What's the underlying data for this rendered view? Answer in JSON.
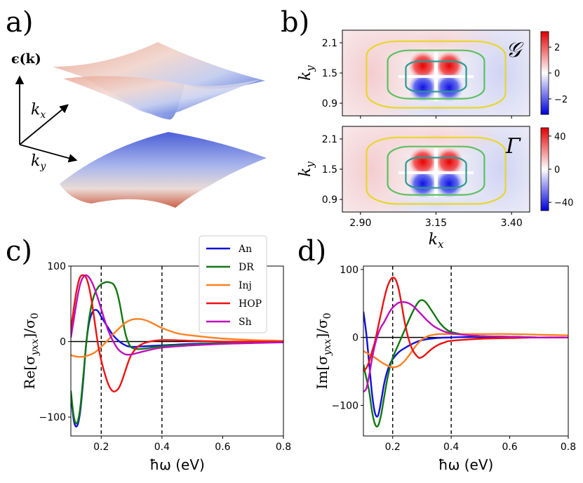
{
  "panel_labels": {
    "a": "a)",
    "b": "b)",
    "c": "c)",
    "d": "d)"
  },
  "panel_a": {
    "energy_label": "ϵ(k)",
    "kx_label": "k",
    "kx_sub": "x",
    "ky_label": "k",
    "ky_sub": "y"
  },
  "chart_data": [
    {
      "id": "b-top",
      "type": "heatmap",
      "ylabel": "k",
      "ylabel_sub": "y",
      "yticks": [
        "2.1",
        "1.5",
        "0.9"
      ],
      "xlim": [
        2.84,
        3.46
      ],
      "ylim": [
        0.65,
        2.35
      ],
      "ytick_values": [
        2.1,
        1.5,
        0.9
      ],
      "colorbar_ticks": [
        "2",
        "0",
        "−2"
      ],
      "colorbar_values": [
        2,
        0,
        -2
      ],
      "colorbar_range": [
        -3.2,
        3.2
      ],
      "corner_symbol": "𝒢",
      "contours": [
        {
          "color": "#e8d62a",
          "cx": 3.15,
          "cy": 1.47,
          "rx": 0.23,
          "ry": 0.66
        },
        {
          "color": "#5cc060",
          "cx": 3.15,
          "cy": 1.47,
          "rx": 0.16,
          "ry": 0.48
        },
        {
          "color": "#2a9a90",
          "cx": 3.15,
          "cy": 1.43,
          "rx": 0.1,
          "ry": 0.3
        }
      ]
    },
    {
      "id": "b-bottom",
      "type": "heatmap",
      "ylabel": "k",
      "ylabel_sub": "y",
      "xlabel": "k",
      "xlabel_sub": "x",
      "xticks": [
        "2.90",
        "3.15",
        "3.40"
      ],
      "xtick_values": [
        2.9,
        3.15,
        3.4
      ],
      "yticks": [
        "2.1",
        "1.5",
        "0.9"
      ],
      "ytick_values": [
        2.1,
        1.5,
        0.9
      ],
      "xlim": [
        2.84,
        3.46
      ],
      "ylim": [
        0.65,
        2.35
      ],
      "colorbar_ticks": [
        "40",
        "0",
        "−40"
      ],
      "colorbar_values": [
        40,
        0,
        -40
      ],
      "colorbar_range": [
        -50,
        50
      ],
      "corner_symbol": "Γ",
      "contours": [
        {
          "color": "#e8d62a",
          "cx": 3.15,
          "cy": 1.47,
          "rx": 0.23,
          "ry": 0.66
        },
        {
          "color": "#5cc060",
          "cx": 3.15,
          "cy": 1.47,
          "rx": 0.16,
          "ry": 0.48
        },
        {
          "color": "#2a9a90",
          "cx": 3.15,
          "cy": 1.43,
          "rx": 0.1,
          "ry": 0.3
        }
      ]
    },
    {
      "id": "c",
      "type": "line",
      "xlabel": "ħω (eV)",
      "ylabel": "Re[σ",
      "ylabel_sub": "yxx",
      "ylabel_end": "]/σ",
      "ylabel_sub2": "0",
      "xlim": [
        0.1,
        0.8
      ],
      "ylim": [
        -125,
        100
      ],
      "xticks": [
        "0.2",
        "0.4",
        "0.6",
        "0.8"
      ],
      "xtick_values": [
        0.2,
        0.4,
        0.6,
        0.8
      ],
      "yticks": [
        "100",
        "0",
        "−100"
      ],
      "ytick_values": [
        100,
        0,
        -100
      ],
      "vlines": [
        0.2,
        0.4
      ],
      "legend": "top-right",
      "series": [
        {
          "name": "An",
          "color": "#1010dd",
          "x": [
            0.1,
            0.11,
            0.12,
            0.13,
            0.14,
            0.15,
            0.16,
            0.17,
            0.18,
            0.19,
            0.2,
            0.22,
            0.24,
            0.26,
            0.28,
            0.3,
            0.35,
            0.4,
            0.5,
            0.6,
            0.7,
            0.8
          ],
          "y": [
            -70,
            -105,
            -112,
            -95,
            -55,
            -5,
            25,
            38,
            42,
            40,
            33,
            20,
            8,
            0,
            -5,
            -7,
            -6,
            -5,
            -3,
            -2,
            -1,
            -1
          ]
        },
        {
          "name": "DR",
          "color": "#117711",
          "x": [
            0.1,
            0.11,
            0.12,
            0.13,
            0.14,
            0.15,
            0.16,
            0.17,
            0.18,
            0.19,
            0.2,
            0.21,
            0.22,
            0.23,
            0.24,
            0.25,
            0.26,
            0.27,
            0.28,
            0.29,
            0.3,
            0.32,
            0.35,
            0.4,
            0.5,
            0.6,
            0.7,
            0.8
          ],
          "y": [
            -65,
            -100,
            -108,
            -90,
            -50,
            -5,
            30,
            52,
            65,
            72,
            76,
            78,
            79,
            78,
            76,
            68,
            52,
            30,
            10,
            -2,
            -8,
            -10,
            -9,
            -6,
            -4,
            -2,
            -1,
            -1
          ]
        },
        {
          "name": "Inj",
          "color": "#ff8020",
          "x": [
            0.1,
            0.12,
            0.14,
            0.16,
            0.18,
            0.2,
            0.22,
            0.24,
            0.26,
            0.28,
            0.3,
            0.32,
            0.34,
            0.36,
            0.38,
            0.4,
            0.45,
            0.5,
            0.6,
            0.7,
            0.8
          ],
          "y": [
            -18,
            -20,
            -20,
            -18,
            -14,
            -7,
            1,
            10,
            18,
            25,
            29,
            30,
            29,
            26,
            22,
            18,
            11,
            8,
            4,
            2,
            1
          ]
        },
        {
          "name": "HOP",
          "color": "#ee1111",
          "x": [
            0.1,
            0.11,
            0.12,
            0.13,
            0.14,
            0.15,
            0.16,
            0.17,
            0.18,
            0.19,
            0.2,
            0.21,
            0.22,
            0.23,
            0.24,
            0.25,
            0.26,
            0.27,
            0.28,
            0.29,
            0.3,
            0.32,
            0.35,
            0.4,
            0.5,
            0.6,
            0.7,
            0.8
          ],
          "y": [
            15,
            45,
            70,
            85,
            88,
            85,
            72,
            50,
            22,
            -5,
            -25,
            -40,
            -53,
            -62,
            -66,
            -65,
            -60,
            -50,
            -38,
            -26,
            -17,
            -7,
            -1,
            2,
            1,
            0,
            0,
            0
          ]
        },
        {
          "name": "Sh",
          "color": "#bb11bb",
          "x": [
            0.1,
            0.11,
            0.12,
            0.13,
            0.14,
            0.15,
            0.16,
            0.17,
            0.18,
            0.19,
            0.2,
            0.21,
            0.22,
            0.23,
            0.24,
            0.25,
            0.26,
            0.28,
            0.3,
            0.32,
            0.35,
            0.4,
            0.5,
            0.6,
            0.7,
            0.8
          ],
          "y": [
            5,
            30,
            55,
            75,
            85,
            88,
            85,
            78,
            68,
            56,
            43,
            30,
            18,
            8,
            0,
            -7,
            -12,
            -17,
            -17,
            -15,
            -12,
            -8,
            -5,
            -3,
            -2,
            -1
          ]
        }
      ]
    },
    {
      "id": "d",
      "type": "line",
      "xlabel": "ħω (eV)",
      "ylabel": "Im[σ",
      "ylabel_sub": "yxx",
      "ylabel_end": "]/σ",
      "ylabel_sub2": "0",
      "xlim": [
        0.1,
        0.8
      ],
      "ylim": [
        -145,
        105
      ],
      "xticks": [
        "0.2",
        "0.4",
        "0.6",
        "0.8"
      ],
      "xtick_values": [
        0.2,
        0.4,
        0.6,
        0.8
      ],
      "yticks": [
        "100",
        "0",
        "−100"
      ],
      "ytick_values": [
        100,
        0,
        -100
      ],
      "vlines": [
        0.2,
        0.4
      ],
      "series": [
        {
          "name": "An",
          "color": "#1010dd",
          "x": [
            0.1,
            0.11,
            0.12,
            0.13,
            0.14,
            0.15,
            0.16,
            0.17,
            0.18,
            0.19,
            0.2,
            0.22,
            0.24,
            0.26,
            0.28,
            0.3,
            0.35,
            0.4,
            0.5,
            0.6,
            0.7,
            0.8
          ],
          "y": [
            38,
            5,
            -40,
            -85,
            -112,
            -115,
            -95,
            -70,
            -52,
            -40,
            -32,
            -22,
            -16,
            -11,
            -7,
            -4,
            -1,
            0,
            1,
            1,
            0,
            0
          ]
        },
        {
          "name": "DR",
          "color": "#117711",
          "x": [
            0.1,
            0.11,
            0.12,
            0.13,
            0.14,
            0.15,
            0.16,
            0.17,
            0.18,
            0.19,
            0.2,
            0.22,
            0.24,
            0.26,
            0.28,
            0.29,
            0.3,
            0.31,
            0.32,
            0.34,
            0.36,
            0.38,
            0.4,
            0.45,
            0.5,
            0.6,
            0.7,
            0.8
          ],
          "y": [
            -40,
            -60,
            -80,
            -110,
            -128,
            -130,
            -115,
            -90,
            -65,
            -45,
            -30,
            -10,
            10,
            30,
            47,
            53,
            55,
            53,
            48,
            35,
            22,
            13,
            8,
            4,
            2,
            1,
            0,
            0
          ]
        },
        {
          "name": "Inj",
          "color": "#ff8020",
          "x": [
            0.1,
            0.12,
            0.14,
            0.16,
            0.18,
            0.2,
            0.22,
            0.24,
            0.26,
            0.28,
            0.3,
            0.32,
            0.34,
            0.36,
            0.38,
            0.4,
            0.45,
            0.5,
            0.6,
            0.7,
            0.8
          ],
          "y": [
            -20,
            -25,
            -30,
            -36,
            -41,
            -44,
            -42,
            -35,
            -24,
            -12,
            -3,
            2,
            4,
            5,
            5,
            5,
            5,
            5,
            5,
            4,
            3
          ]
        },
        {
          "name": "HOP",
          "color": "#ee1111",
          "x": [
            0.1,
            0.11,
            0.12,
            0.13,
            0.14,
            0.15,
            0.16,
            0.17,
            0.18,
            0.19,
            0.2,
            0.21,
            0.22,
            0.23,
            0.24,
            0.25,
            0.26,
            0.27,
            0.28,
            0.29,
            0.3,
            0.31,
            0.32,
            0.34,
            0.36,
            0.38,
            0.4,
            0.5,
            0.6,
            0.7,
            0.8
          ],
          "y": [
            -50,
            -45,
            -35,
            -20,
            -5,
            15,
            35,
            55,
            72,
            83,
            88,
            85,
            72,
            50,
            25,
            5,
            -10,
            -20,
            -26,
            -30,
            -29,
            -26,
            -22,
            -15,
            -10,
            -7,
            -5,
            -2,
            -1,
            0,
            0
          ]
        },
        {
          "name": "Sh",
          "color": "#bb11bb",
          "x": [
            0.1,
            0.11,
            0.12,
            0.13,
            0.14,
            0.15,
            0.16,
            0.17,
            0.18,
            0.19,
            0.2,
            0.21,
            0.22,
            0.23,
            0.24,
            0.25,
            0.26,
            0.27,
            0.28,
            0.3,
            0.32,
            0.35,
            0.4,
            0.5,
            0.6,
            0.7,
            0.8
          ],
          "y": [
            -80,
            -75,
            -55,
            -30,
            -10,
            5,
            15,
            22,
            30,
            38,
            44,
            48,
            51,
            52,
            52,
            51,
            49,
            46,
            42,
            33,
            24,
            14,
            6,
            2,
            1,
            0,
            0
          ]
        }
      ]
    }
  ]
}
